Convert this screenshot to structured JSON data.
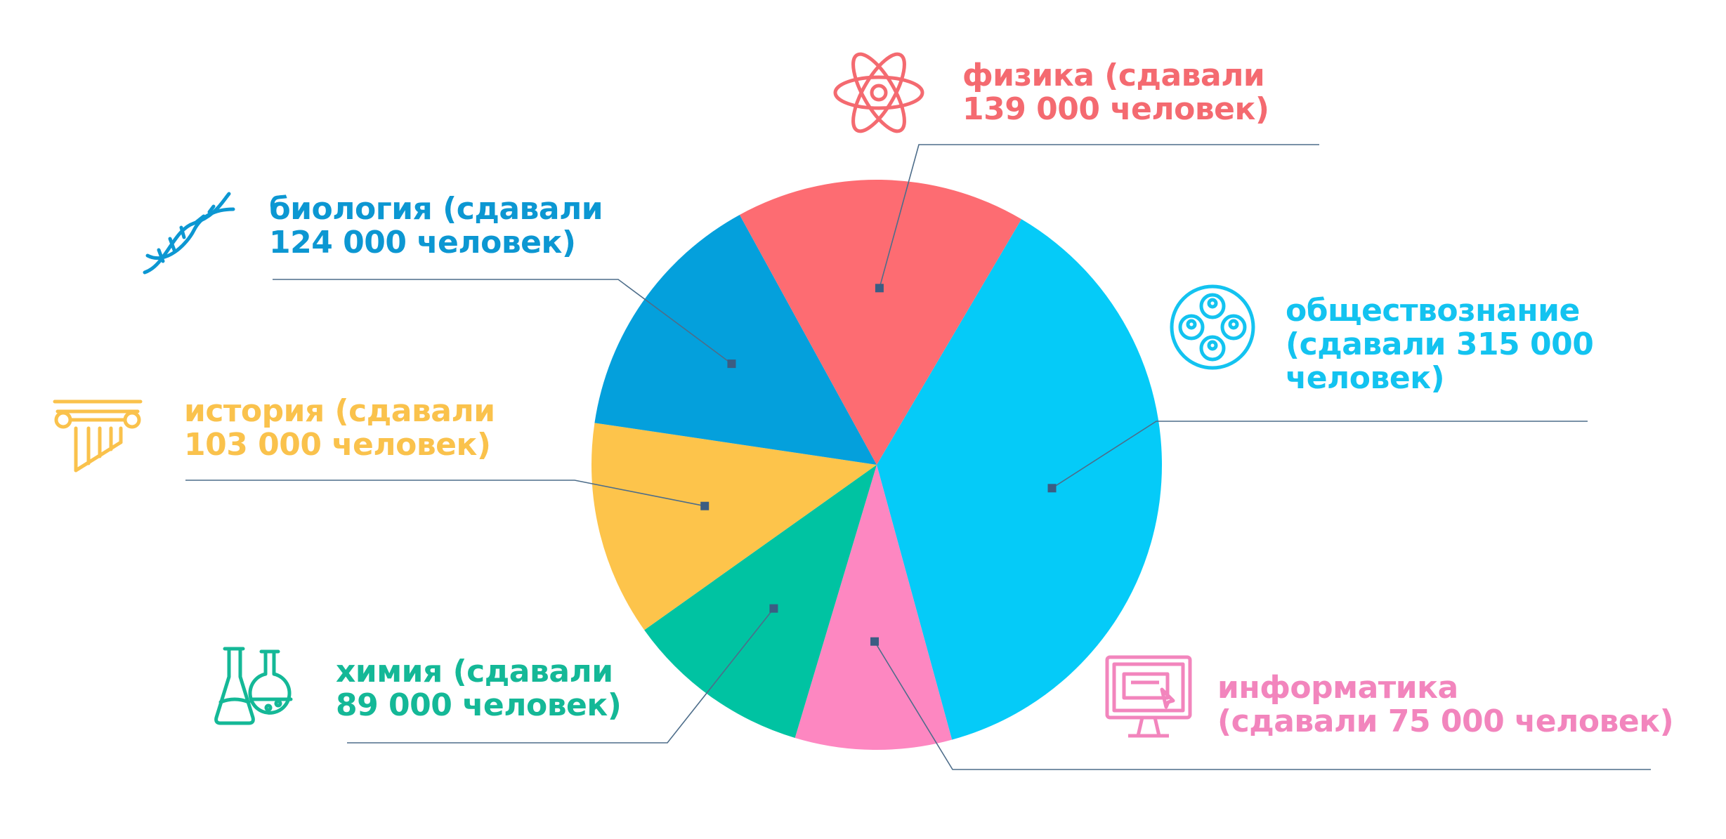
{
  "chart_data": {
    "type": "pie",
    "title": "",
    "slices": [
      {
        "key": "obshch",
        "label_lines": [
          "обществознание",
          "(сдавали 315 000",
          "человек)"
        ],
        "value": 315000,
        "color": "#05cbf8",
        "icon": "people-circle-icon"
      },
      {
        "key": "inform",
        "label_lines": [
          "информатика",
          "(сдавали 75 000 человек)"
        ],
        "value": 75000,
        "color": "#fd87c1",
        "icon": "computer-monitor-icon"
      },
      {
        "key": "chem",
        "label_lines": [
          "химия (сдавали",
          "89 000 человек)"
        ],
        "value": 89000,
        "color": "#00c3a2",
        "icon": "chemistry-flasks-icon"
      },
      {
        "key": "hist",
        "label_lines": [
          "история (сдавали",
          "103 000 человек)"
        ],
        "value": 103000,
        "color": "#fdc44b",
        "icon": "greek-column-icon"
      },
      {
        "key": "bio",
        "label_lines": [
          "биология (сдавали",
          "124 000 человек)"
        ],
        "value": 124000,
        "color": "#04a0dc",
        "icon": "dna-icon"
      },
      {
        "key": "phys",
        "label_lines": [
          "физика (сдавали",
          "139 000 человек)"
        ],
        "value": 139000,
        "color": "#fd6c72",
        "icon": "atom-icon"
      }
    ],
    "start_angle_deg": 30.5,
    "direction": "clockwise",
    "legend": "none"
  },
  "colors": {
    "leader_line": "#4d6d8a",
    "marker": "#3b5d83",
    "text": {
      "obshch": "#13c3f0",
      "inform": "#f285bd",
      "chem": "#14b897",
      "hist": "#fac24c",
      "bio": "#0c97d2",
      "phys": "#f46a70"
    }
  }
}
